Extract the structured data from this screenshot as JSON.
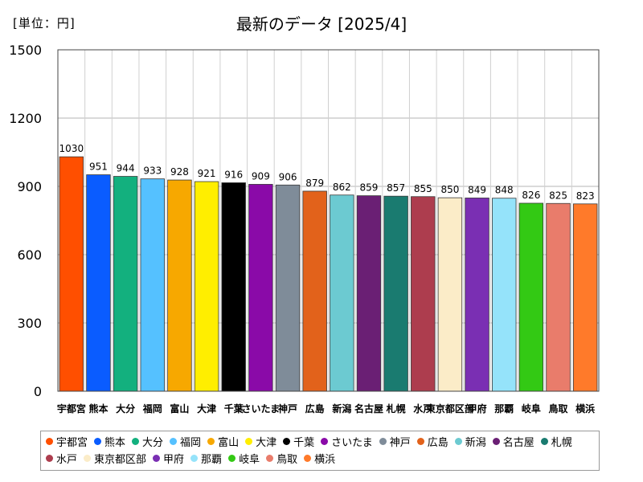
{
  "chart_data": {
    "type": "bar",
    "title": "最新のデータ [2025/4]",
    "unit_label": "[単位：円]",
    "xlabel": "",
    "ylabel": "",
    "ylim": [
      0,
      1500
    ],
    "yticks": [
      0,
      300,
      600,
      900,
      1200,
      1500
    ],
    "grid": true,
    "legend_position": "bottom",
    "categories": [
      "宇都宮",
      "熊本",
      "大分",
      "福岡",
      "富山",
      "大津",
      "千葉",
      "さいたま",
      "神戸",
      "広島",
      "新潟",
      "名古屋",
      "札幌",
      "水戸",
      "東京都区部",
      "甲府",
      "那覇",
      "岐阜",
      "鳥取",
      "横浜"
    ],
    "values": [
      1030,
      951,
      944,
      933,
      928,
      921,
      916,
      909,
      906,
      879,
      862,
      859,
      857,
      855,
      850,
      849,
      848,
      826,
      825,
      823
    ],
    "colors": [
      "#ff4f00",
      "#0a5cff",
      "#13b07e",
      "#55c1ff",
      "#f7a800",
      "#ffee00",
      "#000000",
      "#8a0aa8",
      "#7f8c99",
      "#e2621b",
      "#6ccad1",
      "#6a1f74",
      "#1a7b70",
      "#ad3d4e",
      "#fbecc8",
      "#7a2fb3",
      "#95e3fa",
      "#33c914",
      "#e97c6b",
      "#ff7a2a"
    ]
  }
}
